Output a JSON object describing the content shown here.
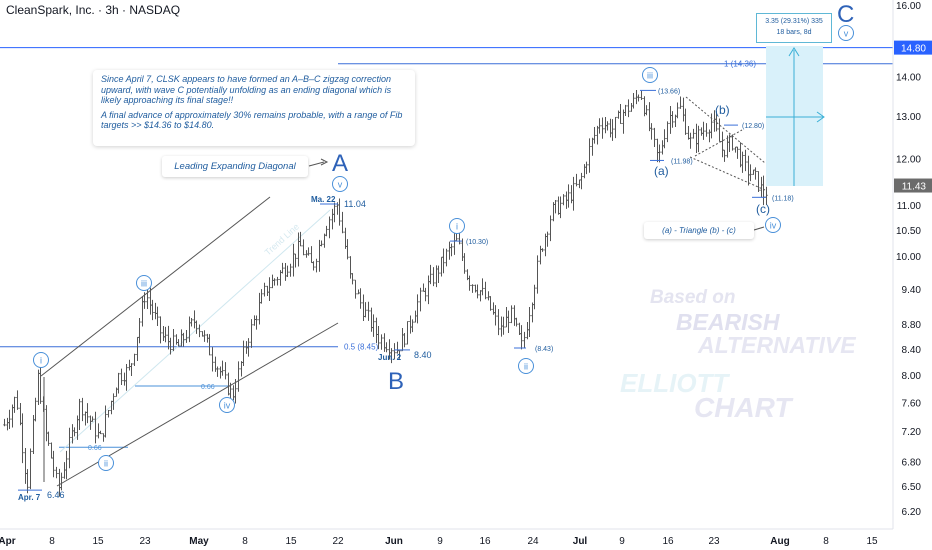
{
  "header": {
    "title": "CleanSpark, Inc. · 3h · NASDAQ"
  },
  "chart_data": {
    "type": "candlestick",
    "symbol": "CleanSpark, Inc.",
    "interval": "3h",
    "exchange": "NASDAQ",
    "y_axis": {
      "ticks": [
        "16.00",
        "14.00",
        "13.00",
        "12.00",
        "11.00",
        "10.50",
        "10.00",
        "9.40",
        "8.80",
        "8.40",
        "8.00",
        "7.60",
        "7.20",
        "6.80",
        "6.50",
        "6.20"
      ],
      "scale": "log",
      "range": [
        6.05,
        16.2
      ]
    },
    "x_axis": {
      "ticks": [
        "Apr",
        "8",
        "15",
        "23",
        "May",
        "8",
        "15",
        "22",
        "Jun",
        "9",
        "16",
        "24",
        "Jul",
        "9",
        "16",
        "23",
        "Aug",
        "8",
        "15"
      ]
    },
    "current_price": "11.43",
    "target_price": "14.80",
    "path": [
      [
        4,
        7.3
      ],
      [
        16,
        7.7
      ],
      [
        27,
        6.5
      ],
      [
        38,
        8.0
      ],
      [
        45,
        7.2
      ],
      [
        58,
        6.46
      ],
      [
        80,
        7.6
      ],
      [
        100,
        7.1
      ],
      [
        118,
        8.0
      ],
      [
        130,
        8.1
      ],
      [
        145,
        9.35
      ],
      [
        162,
        8.6
      ],
      [
        178,
        8.45
      ],
      [
        195,
        8.9
      ],
      [
        212,
        8.3
      ],
      [
        232,
        7.7
      ],
      [
        248,
        8.6
      ],
      [
        265,
        9.4
      ],
      [
        285,
        9.8
      ],
      [
        300,
        10.2
      ],
      [
        312,
        9.8
      ],
      [
        325,
        10.6
      ],
      [
        337,
        11.04
      ],
      [
        350,
        9.6
      ],
      [
        362,
        9.1
      ],
      [
        378,
        8.6
      ],
      [
        396,
        8.4
      ],
      [
        404,
        8.6
      ],
      [
        418,
        9.2
      ],
      [
        436,
        9.7
      ],
      [
        448,
        10.1
      ],
      [
        457,
        10.3
      ],
      [
        468,
        9.6
      ],
      [
        484,
        9.3
      ],
      [
        500,
        8.7
      ],
      [
        510,
        9.0
      ],
      [
        522,
        8.43
      ],
      [
        532,
        9.3
      ],
      [
        540,
        10.1
      ],
      [
        552,
        10.9
      ],
      [
        565,
        11.1
      ],
      [
        580,
        11.5
      ],
      [
        590,
        12.3
      ],
      [
        600,
        12.9
      ],
      [
        612,
        12.7
      ],
      [
        622,
        13.1
      ],
      [
        632,
        13.3
      ],
      [
        640,
        13.66
      ],
      [
        648,
        12.8
      ],
      [
        658,
        11.98
      ],
      [
        668,
        13.0
      ],
      [
        680,
        13.2
      ],
      [
        690,
        12.4
      ],
      [
        700,
        12.6
      ],
      [
        712,
        12.9
      ],
      [
        722,
        12.2
      ],
      [
        732,
        12.4
      ],
      [
        745,
        11.8
      ],
      [
        755,
        11.6
      ],
      [
        764,
        11.2
      ],
      [
        768,
        11.43
      ]
    ],
    "price_lines": [
      {
        "label": "1 (14.36)",
        "value": 14.36
      },
      {
        "label": "0.5 (8.45)",
        "value": 8.45
      },
      {
        "label": "0.66",
        "value": 7.0
      },
      {
        "label": "0.66",
        "value": 7.85
      }
    ],
    "level_labels": [
      {
        "text": "11.04",
        "value": 11.04
      },
      {
        "text": "8.40",
        "value": 8.4
      },
      {
        "text": "6.46",
        "value": 6.46
      },
      {
        "text": "(10.30)",
        "value": 10.3
      },
      {
        "text": "(8.43)",
        "value": 8.43
      },
      {
        "text": "(13.66)",
        "value": 13.66
      },
      {
        "text": "(11.98)",
        "value": 11.98
      },
      {
        "text": "(12.80)",
        "value": 12.8
      },
      {
        "text": "(11.18)",
        "value": 11.18
      }
    ],
    "date_labels": [
      "Apr. 7",
      "Ma. 22",
      "Jun. 2"
    ],
    "waves": {
      "major": [
        "A",
        "B",
        "C"
      ],
      "circled": [
        "i",
        "ii",
        "iii",
        "iv",
        "v",
        "i",
        "ii",
        "iii",
        "iv",
        "v"
      ],
      "sub": [
        "(a)",
        "(b)",
        "(c)"
      ]
    },
    "diagonal_label": "Trend Line",
    "annotations": {
      "note": [
        "Since April 7, CLSK appears to have formed an A–B–C zigzag correction upward, with wave C potentially unfolding as an ending diagonal which is likely approaching its final stage!!",
        "A final advance of approximately 30% remains probable, with a range of Fib targets >> $14.36 to $14.80."
      ],
      "leading_diagonal": "Leading Expanding Diagonal",
      "triangle": "(a) - Triangle (b) - (c)",
      "projection_line1": "3.35 (29.31%) 335",
      "projection_line2": "18 bars, 8d"
    },
    "watermark": [
      "Based on",
      "BEARISH",
      "ALTERNATIVE",
      "ELLIOTT",
      "CHART"
    ]
  },
  "colors": {
    "wave": "#1f5c9e",
    "circle": "#4a90d9",
    "fib_line": "#3a6fd8",
    "candle": "#555555",
    "channel": "#555555",
    "price_tag_current": "#6b6b6b",
    "price_tag_target": "#2962ff",
    "projection_fill": "#d9f1fa",
    "projection_line": "#3ab0d6",
    "watermark": "#e8e8f3"
  }
}
